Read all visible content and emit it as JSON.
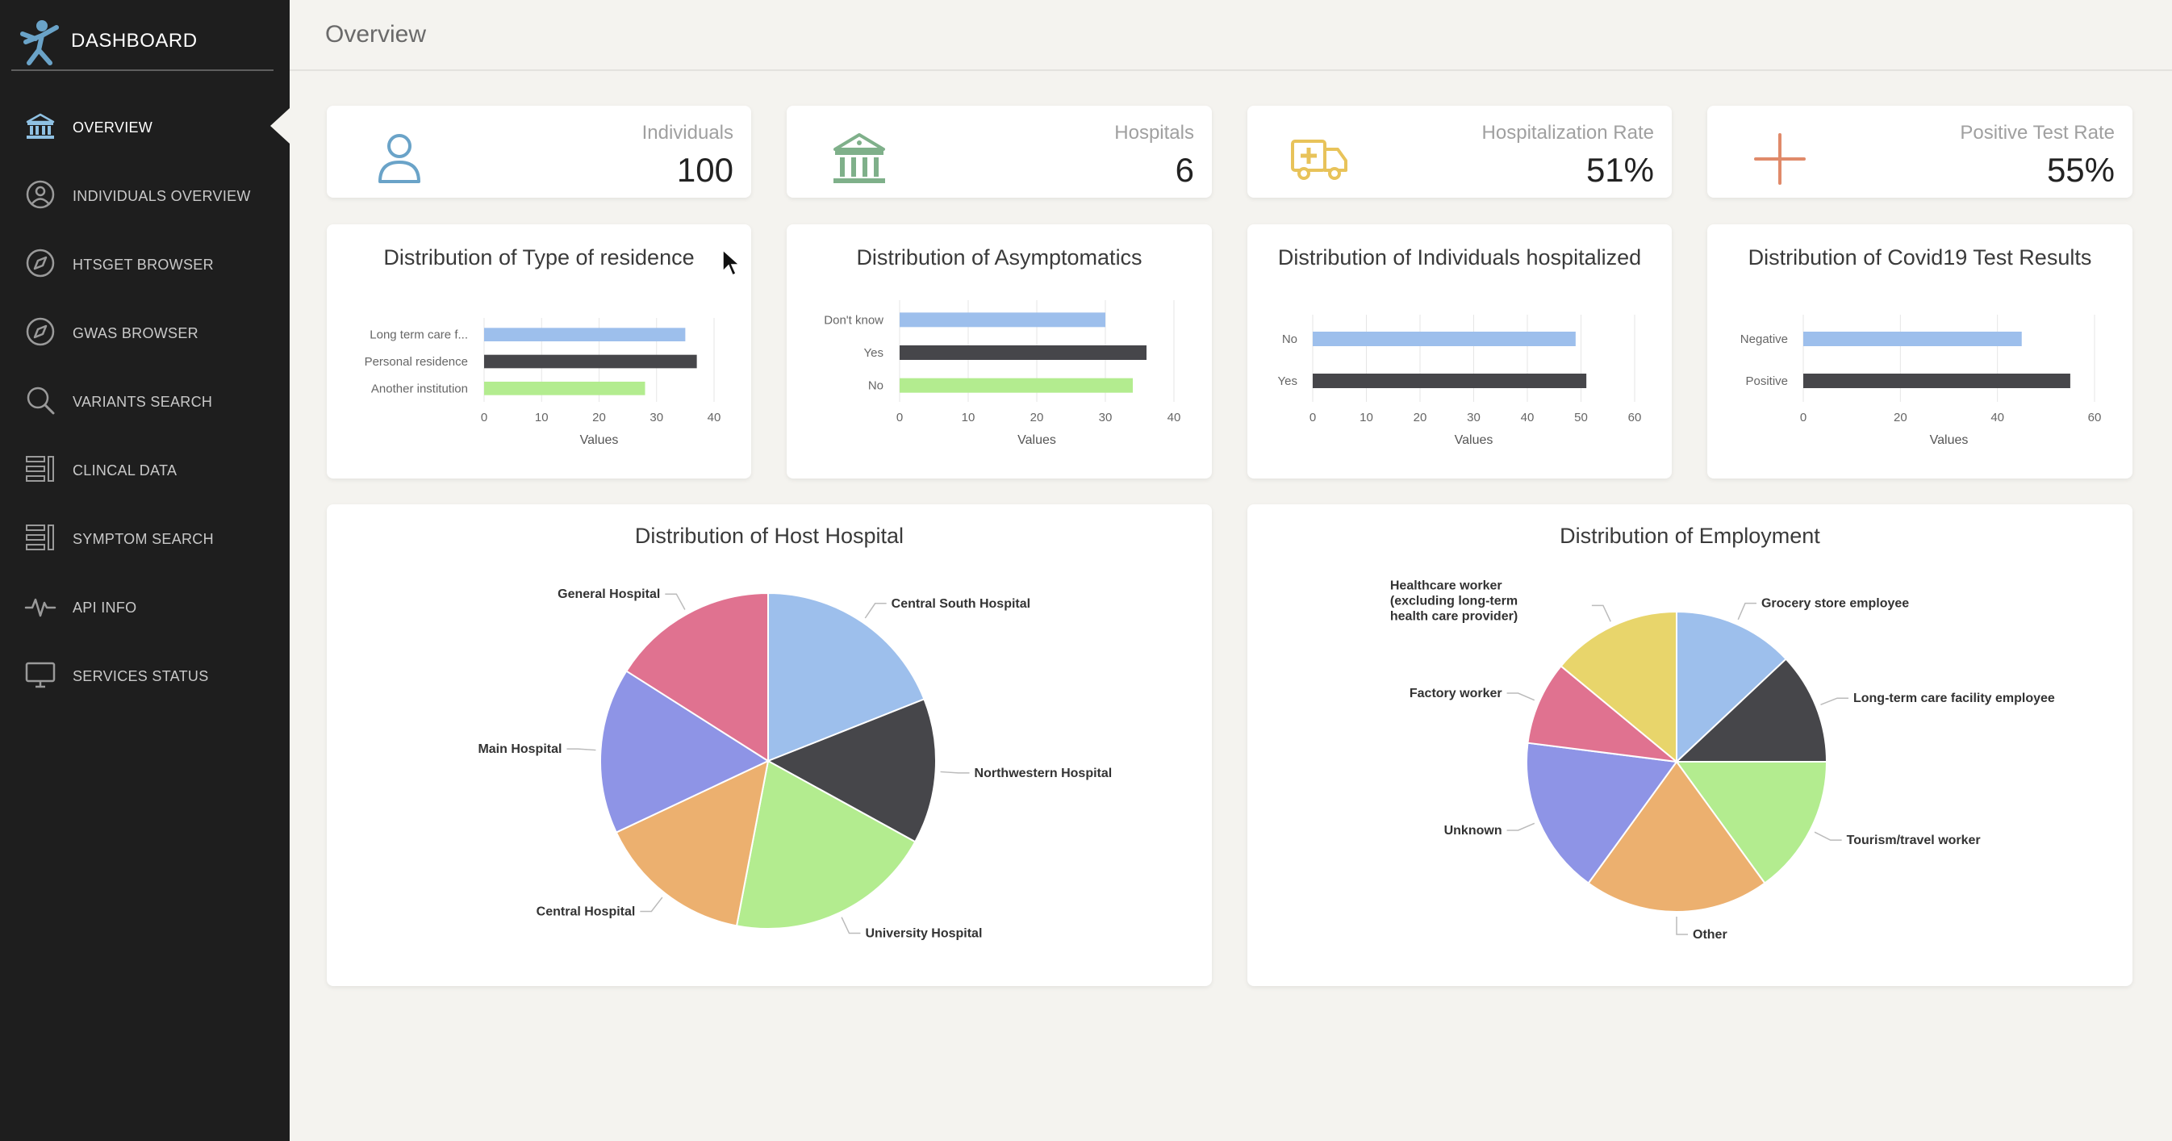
{
  "brand": {
    "title": "DASHBOARD"
  },
  "sidebar": {
    "items": [
      {
        "label": "OVERVIEW",
        "icon": "bank-icon",
        "active": true
      },
      {
        "label": "INDIVIDUALS OVERVIEW",
        "icon": "user-circle-icon"
      },
      {
        "label": "HTSGET BROWSER",
        "icon": "compass-icon"
      },
      {
        "label": "GWAS BROWSER",
        "icon": "compass-icon"
      },
      {
        "label": "VARIANTS SEARCH",
        "icon": "search-icon"
      },
      {
        "label": "CLINCAL DATA",
        "icon": "list-icon"
      },
      {
        "label": "SYMPTOM SEARCH",
        "icon": "list-icon"
      },
      {
        "label": "API INFO",
        "icon": "pulse-icon"
      },
      {
        "label": "SERVICES STATUS",
        "icon": "monitor-icon"
      }
    ]
  },
  "header": {
    "title": "Overview"
  },
  "stats": [
    {
      "label": "Individuals",
      "value": "100",
      "icon": "user-icon",
      "color": "#6aa3c8"
    },
    {
      "label": "Hospitals",
      "value": "6",
      "icon": "bank-icon",
      "color": "#7fb08a"
    },
    {
      "label": "Hospitalization Rate",
      "value": "51%",
      "icon": "ambulance-icon",
      "color": "#e8c35a"
    },
    {
      "label": "Positive Test Rate",
      "value": "55%",
      "icon": "plus-icon",
      "color": "#e08a6a"
    }
  ],
  "colors": {
    "blue": "#9dbfec",
    "dark": "#46464a",
    "green": "#b3ec8f",
    "pink": "#e07290",
    "purple": "#8e94e6",
    "orange": "#ecb06f",
    "yellow": "#e8d56b"
  },
  "chart_data": [
    {
      "type": "bar",
      "title": "Distribution of Type of residence",
      "categories": [
        "Long term care f...",
        "Personal residence",
        "Another institution"
      ],
      "values": [
        35,
        37,
        28
      ],
      "colors": [
        "#9dbfec",
        "#46464a",
        "#b3ec8f"
      ],
      "xlabel": "Values",
      "xlim": [
        0,
        40
      ],
      "ticks": [
        0,
        10,
        20,
        30,
        40
      ]
    },
    {
      "type": "bar",
      "title": "Distribution of Asymptomatics",
      "categories": [
        "Don't know",
        "Yes",
        "No"
      ],
      "values": [
        30,
        36,
        34
      ],
      "colors": [
        "#9dbfec",
        "#46464a",
        "#b3ec8f"
      ],
      "xlabel": "Values",
      "xlim": [
        0,
        40
      ],
      "ticks": [
        0,
        10,
        20,
        30,
        40
      ]
    },
    {
      "type": "bar",
      "title": "Distribution of Individuals hospitalized",
      "categories": [
        "No",
        "Yes"
      ],
      "values": [
        49,
        51
      ],
      "colors": [
        "#9dbfec",
        "#46464a"
      ],
      "xlabel": "Values",
      "xlim": [
        0,
        60
      ],
      "ticks": [
        0,
        10,
        20,
        30,
        40,
        50,
        60
      ]
    },
    {
      "type": "bar",
      "title": "Distribution of Covid19 Test Results",
      "categories": [
        "Negative",
        "Positive"
      ],
      "values": [
        45,
        55
      ],
      "colors": [
        "#9dbfec",
        "#46464a"
      ],
      "xlabel": "Values",
      "xlim": [
        0,
        60
      ],
      "ticks": [
        0,
        20,
        40,
        60
      ]
    },
    {
      "type": "pie",
      "title": "Distribution of Host Hospital",
      "categories": [
        "Central South Hospital",
        "Northwestern Hospital",
        "University Hospital",
        "Central Hospital",
        "Main Hospital",
        "General Hospital"
      ],
      "values": [
        19,
        14,
        20,
        15,
        16,
        16
      ],
      "colors": [
        "#9dbfec",
        "#46464a",
        "#b3ec8f",
        "#ecb06f",
        "#8e94e6",
        "#e07290"
      ]
    },
    {
      "type": "pie",
      "title": "Distribution of Employment",
      "categories": [
        "Grocery store employee",
        "Long-term care facility employee",
        "Tourism/travel worker",
        "Other",
        "Unknown",
        "Factory worker",
        "Healthcare worker (excluding long-term health care provider)"
      ],
      "values": [
        13,
        12,
        15,
        20,
        17,
        9,
        14
      ],
      "colors": [
        "#9dbfec",
        "#46464a",
        "#b3ec8f",
        "#ecb06f",
        "#8e94e6",
        "#e07290",
        "#e8d56b"
      ]
    }
  ]
}
